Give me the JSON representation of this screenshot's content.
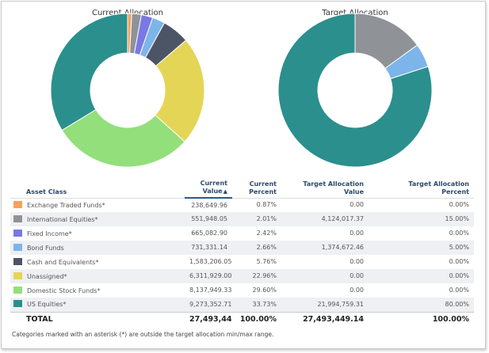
{
  "charts": {
    "current": {
      "title": "Current Allocation"
    },
    "target": {
      "title": "Target Allocation"
    }
  },
  "chart_data": [
    {
      "type": "pie",
      "title": "Current Allocation",
      "categories": [
        "Exchange Traded Funds*",
        "International Equities*",
        "Fixed Income*",
        "Bond Funds",
        "Cash and Equivalents*",
        "Unassigned*",
        "Domestic Stock Funds*",
        "US Equities*"
      ],
      "values": [
        0.87,
        2.01,
        2.42,
        2.66,
        5.76,
        22.96,
        29.6,
        33.73
      ]
    },
    {
      "type": "pie",
      "title": "Target Allocation",
      "categories": [
        "International Equities*",
        "Bond Funds",
        "US Equities*"
      ],
      "values": [
        15.0,
        5.0,
        80.0
      ]
    }
  ],
  "colors": {
    "Exchange Traded Funds*": "#f4a35e",
    "International Equities*": "#8f9398",
    "Fixed Income*": "#7a78e4",
    "Bond Funds": "#7db5ea",
    "Cash and Equivalents*": "#4b5565",
    "Unassigned*": "#e5d556",
    "Domestic Stock Funds*": "#93df7b",
    "US Equities*": "#2b8f8d"
  },
  "table": {
    "headers": {
      "asset_class": "Asset Class",
      "current_value_1": "Current",
      "current_value_2": "Value",
      "current_percent_1": "Current",
      "current_percent_2": "Percent",
      "target_value_1": "Target Allocation",
      "target_value_2": "Value",
      "target_percent_1": "Target Allocation",
      "target_percent_2": "Percent",
      "sort_icon": "▲"
    },
    "rows": [
      {
        "name": "Exchange Traded Funds*",
        "value": "238,649.96",
        "pct": "0.87%",
        "tvalue": "0.00",
        "tpct": "0.00%"
      },
      {
        "name": "International Equities*",
        "value": "551,948.05",
        "pct": "2.01%",
        "tvalue": "4,124,017.37",
        "tpct": "15.00%"
      },
      {
        "name": "Fixed Income*",
        "value": "665,082.90",
        "pct": "2.42%",
        "tvalue": "0.00",
        "tpct": "0.00%"
      },
      {
        "name": "Bond Funds",
        "value": "731,331.14",
        "pct": "2.66%",
        "tvalue": "1,374,672.46",
        "tpct": "5.00%"
      },
      {
        "name": "Cash and Equivalents*",
        "value": "1,583,206.05",
        "pct": "5.76%",
        "tvalue": "0.00",
        "tpct": "0.00%"
      },
      {
        "name": "Unassigned*",
        "value": "6,311,929.00",
        "pct": "22.96%",
        "tvalue": "0.00",
        "tpct": "0.00%"
      },
      {
        "name": "Domestic Stock Funds*",
        "value": "8,137,949.33",
        "pct": "29.60%",
        "tvalue": "0.00",
        "tpct": "0.00%"
      },
      {
        "name": "US Equities*",
        "value": "9,273,352.71",
        "pct": "33.73%",
        "tvalue": "21,994,759.31",
        "tpct": "80.00%"
      }
    ],
    "total": {
      "label": "TOTAL",
      "value": "27,493,449.14",
      "pct": "100.00%",
      "tvalue": "27,493,449.14",
      "tpct": "100.00%"
    }
  },
  "footnote": "Categories marked with an asterisk (*) are outside the target allocation min/max range."
}
